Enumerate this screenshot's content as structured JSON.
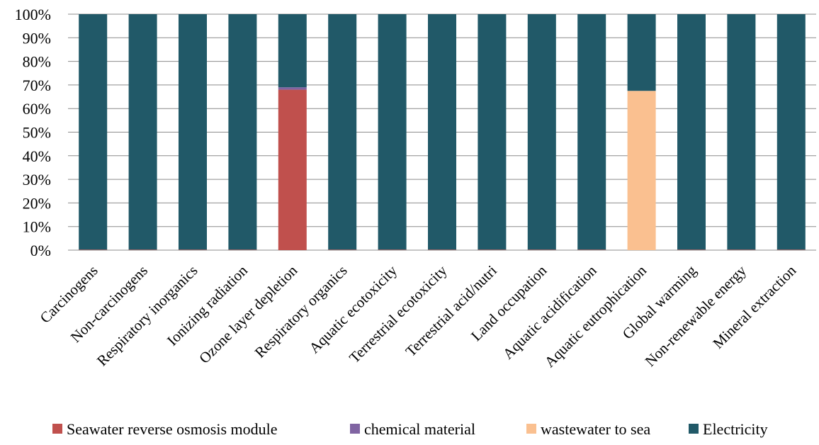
{
  "chart_data": {
    "type": "bar",
    "stacked": true,
    "percent_stacked": true,
    "title": "",
    "xlabel": "",
    "ylabel": "",
    "ylim": [
      0,
      100
    ],
    "yticks": [
      "0%",
      "10%",
      "20%",
      "30%",
      "40%",
      "50%",
      "60%",
      "70%",
      "80%",
      "90%",
      "100%"
    ],
    "grid": true,
    "legend_position": "bottom",
    "categories": [
      "Carcinogens",
      "Non-carcinogens",
      "Respiratory inorganics",
      "Ionizing radiation",
      "Ozone layer depletion",
      "Respiratory organics",
      "Aquatic ecotoxicity",
      "Terrestrial ecotoxicity",
      "Terrestrial acid/nutri",
      "Land occupation",
      "Aquatic acidification",
      "Aquatic eutrophication",
      "Global warming",
      "Non-renewable energy",
      "Mineral extraction"
    ],
    "series": [
      {
        "name": "Seawater reverse osmosis module",
        "color": "#c0504d",
        "values": [
          0.2,
          0.2,
          0.2,
          0.2,
          68,
          0.2,
          0.2,
          0.2,
          0.2,
          0.2,
          0.2,
          0,
          0.2,
          0.2,
          0.2
        ]
      },
      {
        "name": "chemical material",
        "color": "#8064a2",
        "values": [
          0,
          0,
          0,
          0,
          1,
          0,
          0,
          0,
          0,
          0,
          0,
          0,
          0,
          0,
          0
        ]
      },
      {
        "name": "wastewater to sea",
        "color": "#fac090",
        "values": [
          0,
          0,
          0,
          0,
          0,
          0,
          0,
          0,
          0,
          0,
          0,
          67.5,
          0,
          0,
          0
        ]
      },
      {
        "name": "Electricity",
        "color": "#215968",
        "values": [
          99.8,
          99.8,
          99.8,
          99.8,
          31,
          99.8,
          99.8,
          99.8,
          99.8,
          99.8,
          99.8,
          32.5,
          99.8,
          99.8,
          99.8
        ]
      }
    ]
  }
}
